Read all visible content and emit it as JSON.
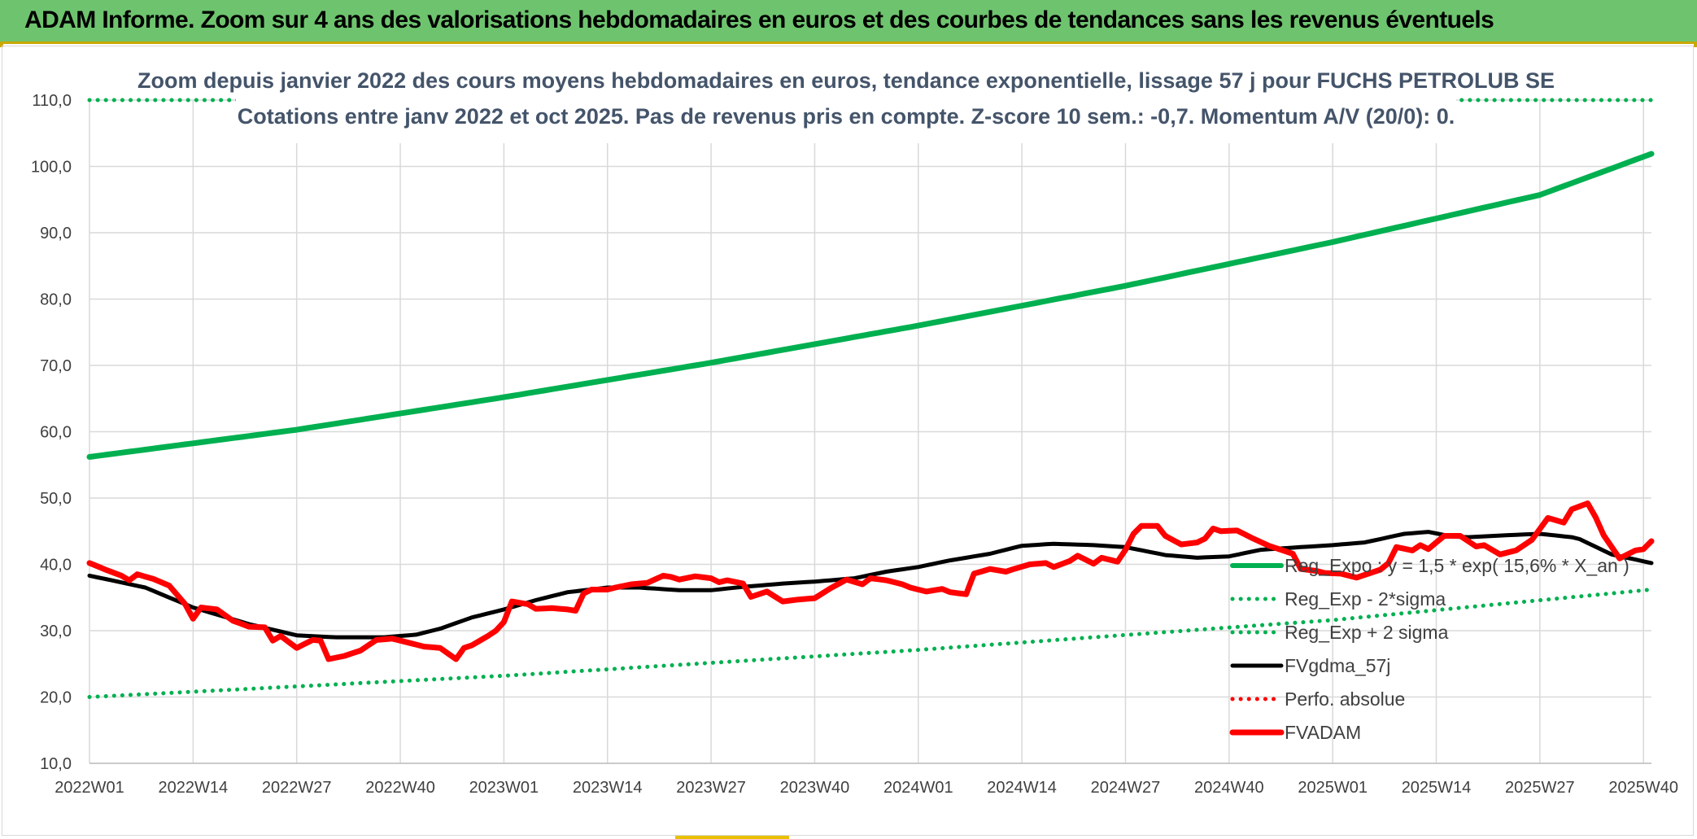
{
  "header": {
    "title": "ADAM Informe. Zoom sur 4 ans des valorisations hebdomadaires en euros et des courbes de tendances sans les revenus éventuels"
  },
  "chart_data": {
    "type": "line",
    "title_line1": "Zoom depuis janvier 2022 des cours moyens hebdomadaires en euros, tendance exponentielle, lissage 57 j pour FUCHS PETROLUB SE",
    "title_line2": "Cotations entre janv 2022 et oct 2025. Pas de revenus pris en compte. Z-score 10 sem.: -0,7. Momentum A/V (20/0): 0.",
    "ylim": [
      10,
      110
    ],
    "yticks": [
      "10,0",
      "20,0",
      "30,0",
      "40,0",
      "50,0",
      "60,0",
      "70,0",
      "80,0",
      "90,0",
      "100,0",
      "110,0"
    ],
    "x_tick_labels": [
      "2022W01",
      "2022W14",
      "2022W27",
      "2022W40",
      "2023W01",
      "2023W14",
      "2023W27",
      "2023W40",
      "2024W01",
      "2024W14",
      "2024W27",
      "2024W40",
      "2025W01",
      "2025W14",
      "2025W27",
      "2025W40"
    ],
    "n_points": 197,
    "series": [
      {
        "name": "Reg_Expo : y = 1,5 * exp( 15,6% * X_an )",
        "style": "solid",
        "color": "#00b050",
        "anchors": [
          [
            0,
            56.2
          ],
          [
            26,
            60.3
          ],
          [
            52,
            65.2
          ],
          [
            78,
            70.4
          ],
          [
            104,
            76.0
          ],
          [
            130,
            82.0
          ],
          [
            156,
            88.6
          ],
          [
            182,
            95.7
          ],
          [
            196,
            101.9
          ]
        ]
      },
      {
        "name": "Reg_Exp - 2*sigma",
        "style": "dotted",
        "color": "#00b050",
        "anchors": [
          [
            0,
            20.0
          ],
          [
            52,
            23.2
          ],
          [
            104,
            27.1
          ],
          [
            156,
            31.6
          ],
          [
            196,
            36.2
          ]
        ]
      },
      {
        "name": "Reg_Exp + 2 sigma",
        "style": "dotted",
        "color": "#00b050",
        "value": 110
      },
      {
        "name": "FVgdma_57j",
        "style": "solid",
        "color": "#000000",
        "anchors": [
          [
            0,
            38.3
          ],
          [
            7,
            36.5
          ],
          [
            13,
            33.5
          ],
          [
            20,
            31.0
          ],
          [
            26,
            29.3
          ],
          [
            31,
            29.0
          ],
          [
            37,
            29.0
          ],
          [
            41,
            29.4
          ],
          [
            44,
            30.3
          ],
          [
            48,
            32.0
          ],
          [
            52,
            33.2
          ],
          [
            56,
            34.6
          ],
          [
            60,
            35.8
          ],
          [
            65,
            36.5
          ],
          [
            69,
            36.5
          ],
          [
            74,
            36.1
          ],
          [
            78,
            36.1
          ],
          [
            82,
            36.6
          ],
          [
            87,
            37.1
          ],
          [
            91,
            37.4
          ],
          [
            96,
            37.9
          ],
          [
            100,
            38.9
          ],
          [
            104,
            39.6
          ],
          [
            108,
            40.6
          ],
          [
            113,
            41.6
          ],
          [
            117,
            42.8
          ],
          [
            121,
            43.1
          ],
          [
            126,
            42.9
          ],
          [
            130,
            42.6
          ],
          [
            135,
            41.4
          ],
          [
            139,
            41.0
          ],
          [
            143,
            41.2
          ],
          [
            147,
            42.2
          ],
          [
            152,
            42.6
          ],
          [
            156,
            42.9
          ],
          [
            160,
            43.3
          ],
          [
            165,
            44.6
          ],
          [
            168,
            44.9
          ],
          [
            171,
            44.2
          ],
          [
            173,
            44.1
          ],
          [
            178,
            44.4
          ],
          [
            182,
            44.6
          ],
          [
            186,
            44.1
          ],
          [
            187,
            43.8
          ],
          [
            191,
            41.5
          ],
          [
            196,
            40.2
          ]
        ]
      },
      {
        "name": "Perfo. absolue",
        "style": "dotted",
        "color": "#ff0000",
        "anchors": []
      },
      {
        "name": "FVADAM",
        "style": "solid",
        "color": "#ff0000",
        "anchors": [
          [
            0,
            40.2
          ],
          [
            2,
            39.2
          ],
          [
            4,
            38.3
          ],
          [
            5,
            37.6
          ],
          [
            6,
            38.5
          ],
          [
            8,
            37.8
          ],
          [
            10,
            36.8
          ],
          [
            12,
            34.0
          ],
          [
            13,
            31.8
          ],
          [
            14,
            33.5
          ],
          [
            16,
            33.2
          ],
          [
            18,
            31.5
          ],
          [
            20,
            30.6
          ],
          [
            22,
            30.5
          ],
          [
            23,
            28.5
          ],
          [
            24,
            29.2
          ],
          [
            26,
            27.4
          ],
          [
            28,
            28.6
          ],
          [
            29,
            28.5
          ],
          [
            30,
            25.7
          ],
          [
            32,
            26.2
          ],
          [
            34,
            27.0
          ],
          [
            36,
            28.6
          ],
          [
            38,
            28.8
          ],
          [
            40,
            28.2
          ],
          [
            42,
            27.6
          ],
          [
            44,
            27.4
          ],
          [
            46,
            25.7
          ],
          [
            47,
            27.4
          ],
          [
            48,
            27.8
          ],
          [
            50,
            29.2
          ],
          [
            51,
            30.0
          ],
          [
            52,
            31.3
          ],
          [
            53,
            34.4
          ],
          [
            55,
            34.0
          ],
          [
            56,
            33.3
          ],
          [
            58,
            33.4
          ],
          [
            60,
            33.2
          ],
          [
            61,
            33.0
          ],
          [
            62,
            35.6
          ],
          [
            63,
            36.2
          ],
          [
            65,
            36.2
          ],
          [
            66,
            36.5
          ],
          [
            68,
            37.0
          ],
          [
            70,
            37.2
          ],
          [
            72,
            38.3
          ],
          [
            73,
            38.1
          ],
          [
            74,
            37.7
          ],
          [
            76,
            38.2
          ],
          [
            78,
            37.9
          ],
          [
            79,
            37.3
          ],
          [
            80,
            37.6
          ],
          [
            82,
            37.1
          ],
          [
            83,
            35.1
          ],
          [
            85,
            35.9
          ],
          [
            87,
            34.4
          ],
          [
            89,
            34.7
          ],
          [
            91,
            34.9
          ],
          [
            93,
            36.4
          ],
          [
            95,
            37.7
          ],
          [
            97,
            37.0
          ],
          [
            98,
            37.9
          ],
          [
            100,
            37.6
          ],
          [
            102,
            37.0
          ],
          [
            103,
            36.5
          ],
          [
            105,
            35.9
          ],
          [
            107,
            36.3
          ],
          [
            108,
            35.8
          ],
          [
            110,
            35.5
          ],
          [
            111,
            38.6
          ],
          [
            113,
            39.3
          ],
          [
            115,
            38.9
          ],
          [
            116,
            39.3
          ],
          [
            118,
            40.0
          ],
          [
            120,
            40.2
          ],
          [
            121,
            39.6
          ],
          [
            123,
            40.5
          ],
          [
            124,
            41.3
          ],
          [
            126,
            40.1
          ],
          [
            127,
            41.0
          ],
          [
            129,
            40.4
          ],
          [
            130,
            42.2
          ],
          [
            131,
            44.6
          ],
          [
            132,
            45.8
          ],
          [
            134,
            45.8
          ],
          [
            135,
            44.3
          ],
          [
            137,
            43.0
          ],
          [
            139,
            43.3
          ],
          [
            140,
            43.9
          ],
          [
            141,
            45.4
          ],
          [
            142,
            45.0
          ],
          [
            144,
            45.1
          ],
          [
            145,
            44.5
          ],
          [
            146,
            43.9
          ],
          [
            148,
            42.8
          ],
          [
            150,
            42.0
          ],
          [
            151,
            41.6
          ],
          [
            152,
            39.3
          ],
          [
            154,
            39.0
          ],
          [
            155,
            38.7
          ],
          [
            157,
            38.6
          ],
          [
            159,
            38.0
          ],
          [
            160,
            38.4
          ],
          [
            162,
            39.2
          ],
          [
            163,
            40.2
          ],
          [
            164,
            42.6
          ],
          [
            166,
            42.1
          ],
          [
            167,
            42.9
          ],
          [
            168,
            42.3
          ],
          [
            170,
            44.3
          ],
          [
            172,
            44.3
          ],
          [
            174,
            42.7
          ],
          [
            175,
            42.9
          ],
          [
            177,
            41.5
          ],
          [
            179,
            42.1
          ],
          [
            181,
            43.7
          ],
          [
            183,
            47.0
          ],
          [
            185,
            46.3
          ],
          [
            186,
            48.3
          ],
          [
            188,
            49.2
          ],
          [
            189,
            47.1
          ],
          [
            190,
            44.4
          ],
          [
            192,
            40.9
          ],
          [
            194,
            42.1
          ],
          [
            195,
            42.3
          ],
          [
            196,
            43.5
          ]
        ]
      }
    ]
  }
}
